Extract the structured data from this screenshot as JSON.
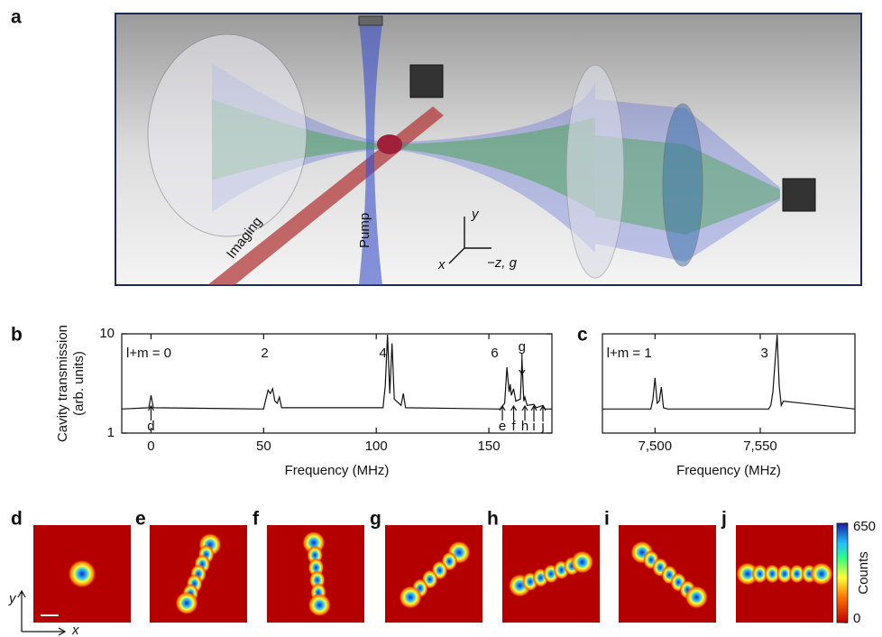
{
  "panel_labels": [
    "a",
    "b",
    "c",
    "d",
    "e",
    "f",
    "g",
    "h",
    "i",
    "j"
  ],
  "diagram": {
    "imaging": "Imaging",
    "pump": "Pump",
    "x": "x",
    "y": "y",
    "z": "−z, g"
  },
  "chart_data": [
    {
      "type": "line",
      "log": true,
      "xlabel": "Frequency (MHz)",
      "ylabel": [
        "Cavity transmission",
        "(arb. units)"
      ],
      "xlim": [
        -13,
        178
      ],
      "xticks": [
        0,
        50,
        100,
        150
      ],
      "ylim": [
        1,
        10
      ],
      "yticks": [
        1,
        10
      ],
      "color": "#111111",
      "x": [
        -13,
        -1,
        0,
        1,
        50,
        51,
        52,
        53,
        54,
        55,
        56,
        57,
        58,
        103,
        104,
        105,
        106,
        107,
        108,
        111,
        112,
        113,
        155,
        157,
        158,
        159,
        159.5,
        160,
        161,
        162,
        164,
        164.7,
        165.5,
        166,
        167,
        170,
        171,
        174,
        175,
        178
      ],
      "values": [
        1.75,
        1.8,
        2.4,
        1.8,
        1.75,
        2.2,
        2.7,
        2.5,
        2.8,
        2.1,
        2.0,
        2.3,
        1.8,
        1.8,
        3.0,
        9.8,
        2.5,
        8.0,
        2.2,
        1.9,
        2.5,
        1.8,
        1.75,
        2.0,
        4.6,
        2.6,
        3.1,
        2.4,
        2.8,
        2.1,
        2.2,
        5.5,
        2.1,
        2.3,
        1.9,
        1.95,
        1.8,
        1.9,
        1.75,
        1.75
      ],
      "annotations": [
        {
          "text": "l+m = 0",
          "x": -11,
          "y": 6.3
        },
        {
          "text": "2",
          "x": 50.5,
          "y": 6.3
        },
        {
          "text": "4",
          "x": 103,
          "y": 6.3
        },
        {
          "text": "6",
          "x": 152.6,
          "y": 6.3
        }
      ],
      "arrows": [
        {
          "text": "d",
          "x": 0,
          "direction": "up"
        },
        {
          "text": "e",
          "x": 156,
          "direction": "up"
        },
        {
          "text": "f",
          "x": 161,
          "direction": "up"
        },
        {
          "text": "g",
          "x": 164.7,
          "direction": "down"
        },
        {
          "text": "h",
          "x": 166,
          "direction": "up"
        },
        {
          "text": "i",
          "x": 170,
          "direction": "up"
        },
        {
          "text": "j",
          "x": 174,
          "direction": "up"
        }
      ]
    },
    {
      "type": "line",
      "log": true,
      "xlabel": "Frequency (MHz)",
      "xlim": [
        7475,
        7595
      ],
      "xticks": [
        {
          "value": 7500,
          "label": "7,500"
        },
        {
          "value": 7550,
          "label": "7,550"
        }
      ],
      "ylim": [
        1,
        10
      ],
      "color": "#111111",
      "x": [
        7475,
        7498,
        7499,
        7500,
        7501,
        7502,
        7503,
        7504,
        7506,
        7554,
        7555,
        7556,
        7557,
        7558,
        7559,
        7560,
        7561,
        7595
      ],
      "values": [
        1.75,
        1.75,
        2.2,
        3.6,
        2.0,
        2.1,
        2.9,
        1.8,
        1.75,
        1.75,
        1.9,
        2.6,
        5.0,
        9.8,
        3.0,
        1.9,
        2.1,
        1.75
      ],
      "annotations": [
        {
          "text": "l+m = 1",
          "x": 7477,
          "y": 6.3
        },
        {
          "text": "3",
          "x": 7552,
          "y": 6.3
        }
      ]
    }
  ],
  "images": {
    "x": "x",
    "y": "y",
    "colorbar": {
      "label": "Counts",
      "lim": [
        0,
        650
      ],
      "ticks": [
        0,
        650
      ]
    }
  }
}
